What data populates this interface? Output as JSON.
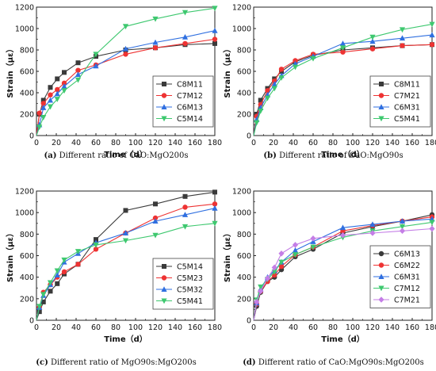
{
  "colors": {
    "black": "#3a3a3a",
    "red": "#ee3333",
    "blue": "#2f6fe0",
    "green": "#3ec86f",
    "purple": "#c47ee6"
  },
  "chart_data": [
    {
      "type": "line",
      "caption_letter": "(a)",
      "caption_rest": " Different ratio of CaO:MgO200s",
      "xlabel": "Time（d）",
      "ylabel": "Strain（με）",
      "xlim": [
        0,
        180
      ],
      "ylim": [
        0,
        1200
      ],
      "xticks": [
        0,
        20,
        40,
        60,
        80,
        100,
        120,
        140,
        160,
        180
      ],
      "yticks": [
        0,
        200,
        400,
        600,
        800,
        1000,
        1200
      ],
      "legend_position": "bottom-right",
      "series": [
        {
          "name": "C8M11",
          "color": "#3a3a3a",
          "marker": "square",
          "x": [
            0,
            3,
            7,
            14,
            21,
            28,
            42,
            60,
            90,
            120,
            150,
            180
          ],
          "y": [
            0,
            200,
            330,
            450,
            530,
            590,
            680,
            740,
            800,
            820,
            850,
            860
          ]
        },
        {
          "name": "C7M12",
          "color": "#ee3333",
          "marker": "circle",
          "x": [
            0,
            3,
            7,
            14,
            21,
            28,
            42,
            60,
            90,
            120,
            150,
            180
          ],
          "y": [
            0,
            210,
            300,
            380,
            430,
            490,
            610,
            660,
            760,
            820,
            860,
            900
          ]
        },
        {
          "name": "C6M13",
          "color": "#2f6fe0",
          "marker": "triangle-up",
          "x": [
            0,
            3,
            7,
            14,
            21,
            28,
            42,
            60,
            90,
            120,
            150,
            180
          ],
          "y": [
            0,
            100,
            260,
            330,
            390,
            460,
            570,
            650,
            810,
            870,
            920,
            980
          ]
        },
        {
          "name": "C5M14",
          "color": "#3ec86f",
          "marker": "triangle-down",
          "x": [
            0,
            3,
            7,
            14,
            21,
            28,
            42,
            60,
            90,
            120,
            150,
            180
          ],
          "y": [
            0,
            80,
            170,
            270,
            340,
            420,
            520,
            760,
            1020,
            1090,
            1150,
            1190
          ]
        }
      ]
    },
    {
      "type": "line",
      "caption_letter": "(b)",
      "caption_rest": " Different ratio of CaO:MgO90s",
      "xlabel": "Time（d）",
      "ylabel": "Strain（με）",
      "xlim": [
        0,
        180
      ],
      "ylim": [
        0,
        1200
      ],
      "xticks": [
        0,
        20,
        40,
        60,
        80,
        100,
        120,
        140,
        160,
        180
      ],
      "yticks": [
        0,
        200,
        400,
        600,
        800,
        1000,
        1200
      ],
      "legend_position": "bottom-right",
      "series": [
        {
          "name": "C8M11",
          "color": "#3a3a3a",
          "marker": "square",
          "x": [
            0,
            3,
            7,
            14,
            21,
            28,
            42,
            60,
            90,
            120,
            150,
            180
          ],
          "y": [
            0,
            200,
            330,
            440,
            530,
            600,
            690,
            750,
            800,
            820,
            840,
            850
          ]
        },
        {
          "name": "C7M21",
          "color": "#ee3333",
          "marker": "circle",
          "x": [
            0,
            3,
            7,
            14,
            21,
            28,
            42,
            60,
            90,
            120,
            150,
            180
          ],
          "y": [
            0,
            180,
            290,
            420,
            510,
            620,
            700,
            760,
            780,
            810,
            840,
            850
          ]
        },
        {
          "name": "C6M31",
          "color": "#2f6fe0",
          "marker": "triangle-up",
          "x": [
            0,
            3,
            7,
            14,
            21,
            28,
            42,
            60,
            90,
            120,
            150,
            180
          ],
          "y": [
            0,
            150,
            260,
            380,
            480,
            560,
            670,
            740,
            860,
            880,
            910,
            940
          ]
        },
        {
          "name": "C5M41",
          "color": "#3ec86f",
          "marker": "triangle-down",
          "x": [
            0,
            3,
            7,
            14,
            21,
            28,
            42,
            60,
            90,
            120,
            150,
            180
          ],
          "y": [
            0,
            120,
            230,
            350,
            440,
            540,
            640,
            720,
            820,
            920,
            990,
            1040
          ]
        }
      ]
    },
    {
      "type": "line",
      "caption_letter": "(c)",
      "caption_rest": " Different ratio of MgO90s:MgO200s",
      "xlabel": "Time（d）",
      "ylabel": "Strain（με）",
      "xlim": [
        0,
        180
      ],
      "ylim": [
        0,
        1200
      ],
      "xticks": [
        0,
        20,
        40,
        60,
        80,
        100,
        120,
        140,
        160,
        180
      ],
      "yticks": [
        0,
        200,
        400,
        600,
        800,
        1000,
        1200
      ],
      "legend_position": "bottom-right",
      "series": [
        {
          "name": "C5M14",
          "color": "#3a3a3a",
          "marker": "square",
          "x": [
            0,
            3,
            7,
            14,
            21,
            28,
            42,
            60,
            90,
            120,
            150,
            180
          ],
          "y": [
            0,
            80,
            170,
            270,
            340,
            430,
            520,
            750,
            1020,
            1080,
            1150,
            1190
          ]
        },
        {
          "name": "C5M23",
          "color": "#ee3333",
          "marker": "circle",
          "x": [
            0,
            3,
            7,
            14,
            21,
            28,
            42,
            60,
            90,
            120,
            150,
            180
          ],
          "y": [
            0,
            120,
            260,
            330,
            400,
            450,
            520,
            660,
            810,
            950,
            1050,
            1080
          ]
        },
        {
          "name": "C5M32",
          "color": "#2f6fe0",
          "marker": "triangle-up",
          "x": [
            0,
            3,
            7,
            14,
            21,
            28,
            42,
            60,
            90,
            120,
            150,
            180
          ],
          "y": [
            0,
            120,
            230,
            330,
            420,
            540,
            620,
            720,
            810,
            920,
            980,
            1040
          ]
        },
        {
          "name": "C5M41",
          "color": "#3ec86f",
          "marker": "triangle-down",
          "x": [
            0,
            3,
            7,
            14,
            21,
            28,
            42,
            60,
            90,
            120,
            150,
            180
          ],
          "y": [
            0,
            130,
            240,
            350,
            460,
            560,
            640,
            700,
            740,
            790,
            870,
            900
          ]
        }
      ]
    },
    {
      "type": "line",
      "caption_letter": "(d)",
      "caption_rest": " Different ratio of CaO:MgO90s:MgO200s",
      "xlabel": "Time（d）",
      "ylabel": "Strain（με）",
      "xlim": [
        0,
        180
      ],
      "ylim": [
        0,
        1200
      ],
      "xticks": [
        0,
        20,
        40,
        60,
        80,
        100,
        120,
        140,
        160,
        180
      ],
      "yticks": [
        0,
        200,
        400,
        600,
        800,
        1000,
        1200
      ],
      "legend_position": "bottom-right",
      "series": [
        {
          "name": "C6M13",
          "color": "#3a3a3a",
          "marker": "circle",
          "x": [
            0,
            3,
            7,
            14,
            21,
            28,
            42,
            60,
            90,
            120,
            150,
            180
          ],
          "y": [
            0,
            130,
            260,
            360,
            400,
            470,
            590,
            660,
            810,
            870,
            920,
            980
          ]
        },
        {
          "name": "C6M22",
          "color": "#ee3333",
          "marker": "circle",
          "x": [
            0,
            3,
            7,
            14,
            21,
            28,
            42,
            60,
            90,
            120,
            150,
            180
          ],
          "y": [
            0,
            150,
            270,
            360,
            420,
            500,
            610,
            680,
            830,
            880,
            920,
            960
          ]
        },
        {
          "name": "C6M31",
          "color": "#2f6fe0",
          "marker": "triangle-up",
          "x": [
            0,
            3,
            7,
            14,
            21,
            28,
            42,
            60,
            90,
            120,
            150,
            180
          ],
          "y": [
            0,
            160,
            290,
            400,
            460,
            540,
            650,
            730,
            860,
            890,
            920,
            940
          ]
        },
        {
          "name": "C7M12",
          "color": "#3ec86f",
          "marker": "triangle-down",
          "x": [
            0,
            3,
            7,
            14,
            21,
            28,
            42,
            60,
            90,
            120,
            150,
            180
          ],
          "y": [
            0,
            190,
            310,
            380,
            450,
            540,
            610,
            680,
            770,
            830,
            870,
            910
          ]
        },
        {
          "name": "C7M21",
          "color": "#c47ee6",
          "marker": "diamond",
          "x": [
            0,
            3,
            7,
            14,
            21,
            28,
            42,
            60,
            90,
            120,
            150,
            180
          ],
          "y": [
            0,
            170,
            270,
            390,
            490,
            620,
            700,
            760,
            790,
            810,
            830,
            850
          ]
        }
      ]
    }
  ]
}
